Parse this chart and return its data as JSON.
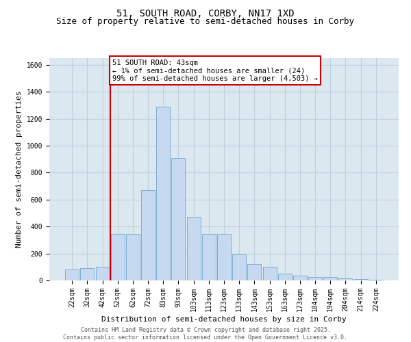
{
  "title_line1": "51, SOUTH ROAD, CORBY, NN17 1XD",
  "title_line2": "Size of property relative to semi-detached houses in Corby",
  "xlabel": "Distribution of semi-detached houses by size in Corby",
  "ylabel": "Number of semi-detached properties",
  "categories": [
    "22sqm",
    "32sqm",
    "42sqm",
    "52sqm",
    "62sqm",
    "72sqm",
    "83sqm",
    "93sqm",
    "103sqm",
    "113sqm",
    "123sqm",
    "133sqm",
    "143sqm",
    "153sqm",
    "163sqm",
    "173sqm",
    "184sqm",
    "194sqm",
    "204sqm",
    "214sqm",
    "224sqm"
  ],
  "values": [
    80,
    90,
    100,
    345,
    345,
    670,
    1290,
    910,
    470,
    345,
    345,
    195,
    120,
    100,
    50,
    35,
    25,
    25,
    15,
    8,
    5
  ],
  "bar_color": "#c6d9f0",
  "bar_edge_color": "#7bafd4",
  "vline_color": "#cc0000",
  "vline_x": 2.5,
  "annotation_text": "51 SOUTH ROAD: 43sqm\n← 1% of semi-detached houses are smaller (24)\n99% of semi-detached houses are larger (4,503) →",
  "annotation_box_color": "#ffffff",
  "annotation_box_edge": "#cc0000",
  "ylim": [
    0,
    1650
  ],
  "yticks": [
    0,
    200,
    400,
    600,
    800,
    1000,
    1200,
    1400,
    1600
  ],
  "grid_color": "#c0d0e0",
  "background_color": "#dce8f0",
  "footer_text": "Contains HM Land Registry data © Crown copyright and database right 2025.\nContains public sector information licensed under the Open Government Licence v3.0.",
  "title_fontsize": 10,
  "subtitle_fontsize": 9,
  "axis_label_fontsize": 8,
  "tick_fontsize": 7,
  "annotation_fontsize": 7.5,
  "footer_fontsize": 6
}
